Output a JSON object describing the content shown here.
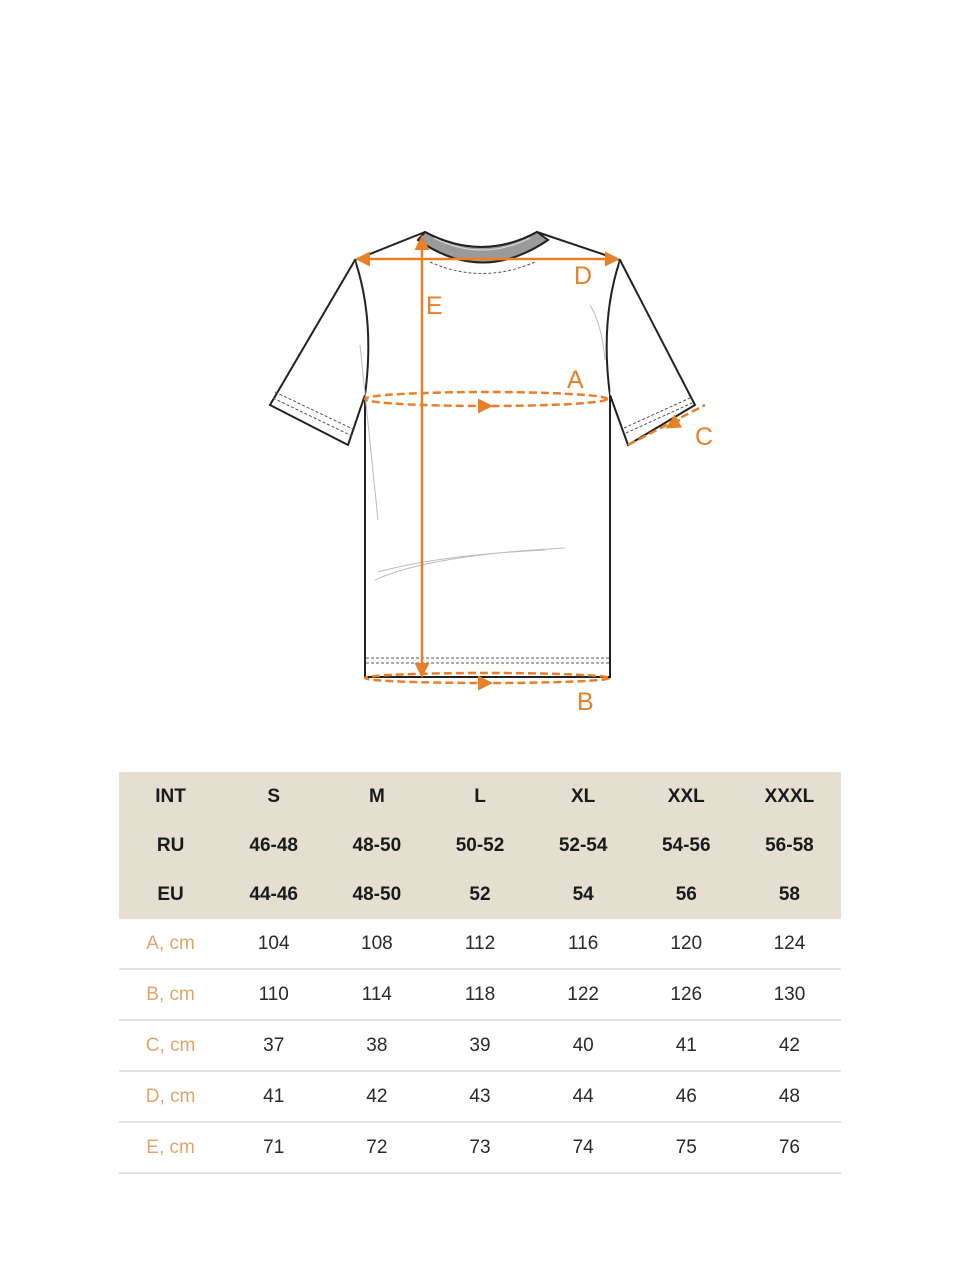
{
  "diagram": {
    "labels": {
      "A": "A",
      "B": "B",
      "C": "C",
      "D": "D",
      "E": "E"
    },
    "accent_color": "#e8802a"
  },
  "size_table": {
    "header_rows": [
      {
        "label": "INT",
        "values": [
          "S",
          "M",
          "L",
          "XL",
          "XXL",
          "XXXL"
        ]
      },
      {
        "label": "RU",
        "values": [
          "46-48",
          "48-50",
          "50-52",
          "52-54",
          "54-56",
          "56-58"
        ]
      },
      {
        "label": "EU",
        "values": [
          "44-46",
          "48-50",
          "52",
          "54",
          "56",
          "58"
        ]
      }
    ],
    "measurement_rows": [
      {
        "label": "A, cm",
        "values": [
          "104",
          "108",
          "112",
          "116",
          "120",
          "124"
        ]
      },
      {
        "label": "B, cm",
        "values": [
          "110",
          "114",
          "118",
          "122",
          "126",
          "130"
        ]
      },
      {
        "label": "C, cm",
        "values": [
          "37",
          "38",
          "39",
          "40",
          "41",
          "42"
        ]
      },
      {
        "label": "D, cm",
        "values": [
          "41",
          "42",
          "43",
          "44",
          "46",
          "48"
        ]
      },
      {
        "label": "E, cm",
        "values": [
          "71",
          "72",
          "73",
          "74",
          "75",
          "76"
        ]
      }
    ],
    "header_bg_color": "#e5dfd2",
    "measurement_label_color": "#e1a56a"
  }
}
